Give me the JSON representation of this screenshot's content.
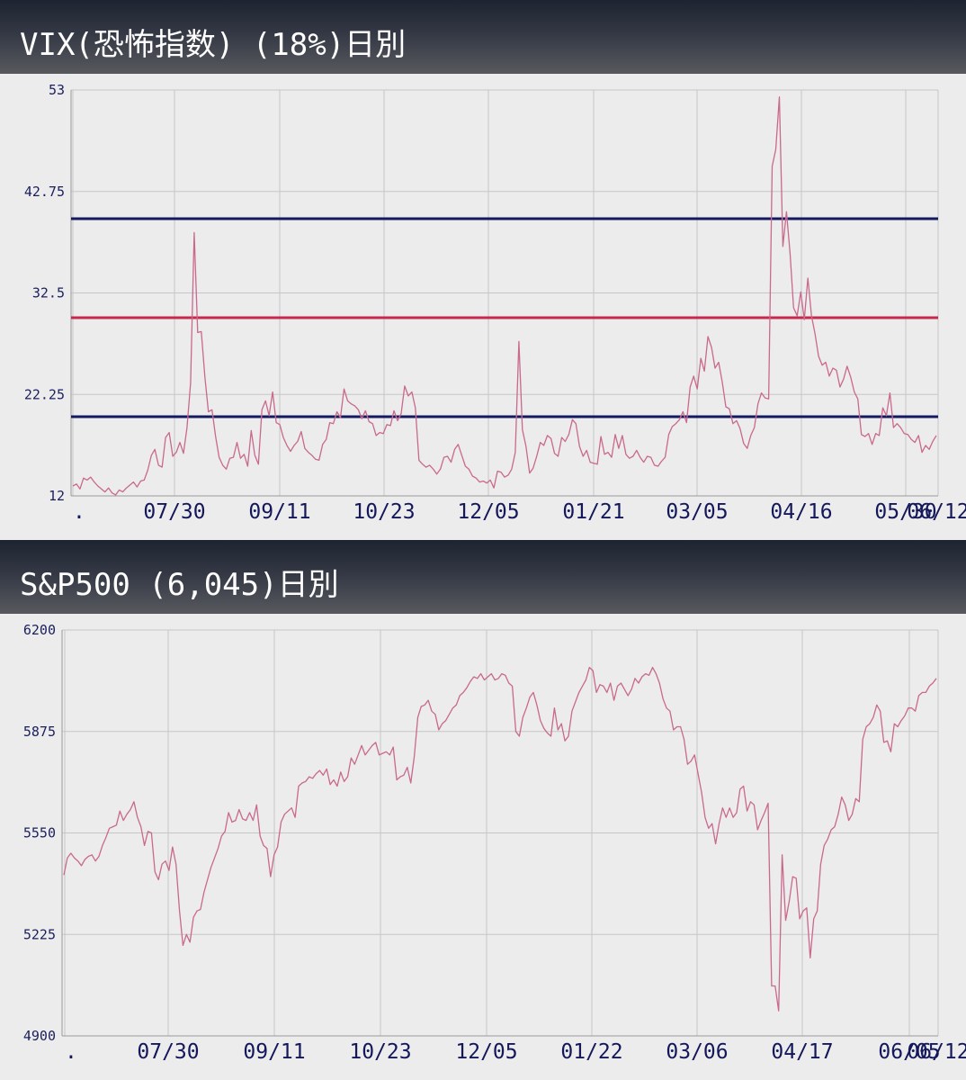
{
  "chart_data": [
    {
      "type": "line",
      "title": "VIX(恐怖指数) (18%)日別",
      "xlabel": "",
      "ylabel": "",
      "ylim": [
        12,
        53
      ],
      "yticks": [
        "53",
        "42.75",
        "32.5",
        "22.25",
        "12"
      ],
      "xticks": [
        ".",
        "07/30",
        "09/11",
        "10/23",
        "12/05",
        "01/21",
        "03/05",
        "04/16",
        "05/30",
        "06/12"
      ],
      "grid": true,
      "legend": "none",
      "colors": {
        "line": "#c9698c",
        "upper": "#141a62",
        "middle": "#c8284e",
        "lower": "#141a62"
      },
      "hlines": [
        {
          "value": 40,
          "color": "#141a62"
        },
        {
          "value": 30,
          "color": "#c8284e"
        },
        {
          "value": 20,
          "color": "#141a62"
        }
      ],
      "series": [
        {
          "values": [
            13.0,
            13.2,
            12.7,
            13.8,
            13.6,
            13.9,
            13.4,
            13.0,
            12.7,
            12.4,
            12.8,
            12.3,
            12.1,
            12.6,
            12.4,
            12.8,
            13.1,
            13.4,
            12.9,
            13.5,
            13.6,
            14.6,
            16.1,
            16.7,
            15.1,
            14.9,
            17.9,
            18.4,
            16.0,
            16.4,
            17.4,
            16.3,
            18.9,
            23.4,
            38.6,
            28.5,
            28.6,
            24.0,
            20.5,
            20.7,
            18.0,
            15.9,
            15.1,
            14.7,
            15.8,
            15.9,
            17.4,
            15.8,
            16.2,
            15.0,
            18.6,
            16.1,
            15.2,
            20.7,
            21.6,
            20.1,
            22.5,
            19.4,
            19.2,
            17.9,
            17.1,
            16.5,
            17.1,
            17.5,
            18.5,
            16.8,
            16.4,
            16.1,
            15.7,
            15.6,
            17.2,
            17.7,
            19.4,
            19.3,
            20.5,
            19.9,
            22.8,
            21.6,
            21.3,
            21.1,
            20.7,
            19.8,
            20.6,
            19.5,
            19.3,
            18.1,
            18.4,
            18.3,
            19.2,
            19.1,
            20.6,
            19.6,
            20.3,
            23.1,
            22.1,
            22.5,
            20.9,
            15.6,
            15.2,
            14.9,
            15.1,
            14.7,
            14.2,
            14.7,
            15.9,
            16.0,
            15.4,
            16.7,
            17.2,
            16.1,
            15.0,
            14.7,
            14.0,
            13.8,
            13.4,
            13.5,
            13.3,
            13.6,
            12.8,
            14.5,
            14.4,
            13.9,
            14.1,
            14.7,
            16.4,
            27.6,
            18.7,
            17.0,
            14.3,
            14.8,
            16.0,
            17.4,
            17.1,
            18.1,
            17.8,
            16.3,
            16.0,
            17.9,
            17.5,
            18.2,
            19.7,
            19.3,
            17.0,
            16.0,
            16.6,
            15.4,
            15.3,
            15.2,
            18.0,
            16.2,
            16.4,
            15.9,
            18.2,
            16.8,
            18.1,
            16.2,
            15.8,
            16.0,
            16.6,
            15.9,
            15.4,
            16.0,
            15.9,
            15.1,
            15.0,
            15.5,
            15.9,
            18.2,
            19.0,
            19.3,
            19.7,
            20.5,
            19.4,
            23.0,
            24.1,
            22.8,
            25.9,
            24.6,
            28.1,
            27.0,
            24.9,
            25.5,
            23.5,
            21.0,
            20.8,
            19.3,
            19.6,
            18.8,
            17.3,
            16.8,
            18.1,
            18.9,
            21.3,
            22.4,
            21.9,
            21.8,
            45.3,
            47.0,
            52.3,
            37.2,
            40.7,
            36.5,
            31.0,
            30.2,
            32.6,
            29.8,
            34.0,
            30.2,
            28.4,
            26.1,
            25.2,
            25.5,
            24.1,
            24.9,
            24.7,
            23.0,
            23.8,
            25.1,
            24.0,
            22.5,
            21.8,
            18.2,
            18.0,
            18.3,
            17.2,
            18.3,
            18.1,
            20.9,
            20.1,
            22.4,
            18.9,
            19.3,
            18.9,
            18.3,
            18.2,
            17.7,
            17.4,
            18.1,
            16.4,
            17.1,
            16.7,
            17.5,
            18.1
          ]
        }
      ]
    },
    {
      "type": "line",
      "title": "S&P500 (6,045)日別",
      "xlabel": "",
      "ylabel": "",
      "ylim": [
        4900,
        6200
      ],
      "yticks": [
        "6200",
        "5875",
        "5550",
        "5225",
        "4900"
      ],
      "xticks": [
        ".",
        "07/30",
        "09/11",
        "10/23",
        "12/05",
        "01/22",
        "03/06",
        "04/17",
        "06/05",
        "06/12"
      ],
      "grid": true,
      "legend": "none",
      "colors": {
        "line": "#c9698c"
      },
      "series": [
        {
          "values": [
            5415,
            5470,
            5485,
            5470,
            5460,
            5445,
            5465,
            5475,
            5480,
            5460,
            5475,
            5510,
            5535,
            5565,
            5570,
            5575,
            5620,
            5590,
            5610,
            5625,
            5650,
            5600,
            5570,
            5510,
            5555,
            5550,
            5425,
            5400,
            5450,
            5460,
            5430,
            5505,
            5450,
            5300,
            5190,
            5225,
            5200,
            5280,
            5300,
            5305,
            5360,
            5400,
            5440,
            5470,
            5500,
            5540,
            5555,
            5615,
            5585,
            5590,
            5625,
            5595,
            5590,
            5615,
            5590,
            5640,
            5540,
            5510,
            5500,
            5410,
            5480,
            5505,
            5585,
            5610,
            5620,
            5630,
            5600,
            5700,
            5710,
            5715,
            5730,
            5725,
            5740,
            5750,
            5735,
            5755,
            5705,
            5720,
            5700,
            5745,
            5715,
            5730,
            5790,
            5770,
            5800,
            5830,
            5800,
            5815,
            5830,
            5840,
            5800,
            5805,
            5810,
            5800,
            5825,
            5720,
            5730,
            5735,
            5760,
            5710,
            5795,
            5920,
            5955,
            5960,
            5975,
            5940,
            5930,
            5880,
            5900,
            5910,
            5930,
            5950,
            5960,
            5990,
            6000,
            6015,
            6035,
            6050,
            6045,
            6060,
            6040,
            6050,
            6060,
            6040,
            6045,
            6060,
            6055,
            6030,
            6020,
            5875,
            5860,
            5920,
            5950,
            5985,
            6000,
            5960,
            5910,
            5885,
            5870,
            5860,
            5950,
            5880,
            5900,
            5845,
            5860,
            5940,
            5970,
            6000,
            6020,
            6040,
            6080,
            6070,
            6000,
            6025,
            6020,
            6000,
            6030,
            5975,
            6020,
            6030,
            6010,
            5990,
            6010,
            6045,
            6030,
            6050,
            6060,
            6055,
            6080,
            6060,
            6030,
            5980,
            5950,
            5940,
            5880,
            5890,
            5890,
            5850,
            5770,
            5780,
            5800,
            5740,
            5680,
            5600,
            5565,
            5580,
            5515,
            5580,
            5630,
            5600,
            5630,
            5600,
            5615,
            5690,
            5700,
            5620,
            5650,
            5640,
            5560,
            5590,
            5615,
            5645,
            5060,
            5060,
            4980,
            5480,
            5270,
            5330,
            5410,
            5405,
            5275,
            5300,
            5310,
            5150,
            5275,
            5300,
            5450,
            5510,
            5530,
            5560,
            5570,
            5610,
            5665,
            5640,
            5590,
            5610,
            5660,
            5650,
            5850,
            5890,
            5900,
            5920,
            5960,
            5940,
            5840,
            5845,
            5810,
            5900,
            5890,
            5910,
            5925,
            5950,
            5950,
            5940,
            5990,
            6000,
            6000,
            6020,
            6030,
            6045
          ]
        }
      ]
    }
  ]
}
